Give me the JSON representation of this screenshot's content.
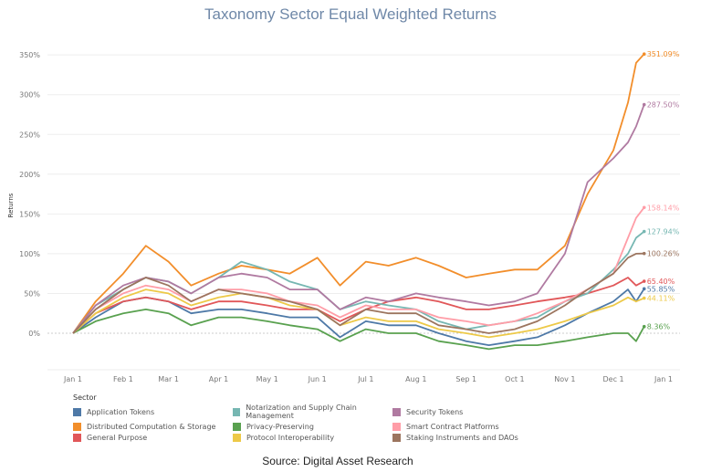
{
  "chart_data": {
    "type": "line",
    "title": "Taxonomy Sector Equal Weighted Returns",
    "ylabel": "Returns",
    "xlabel": "",
    "ylim": [
      -50,
      370
    ],
    "yticks": [
      "0%",
      "50%",
      "100%",
      "150%",
      "200%",
      "250%",
      "300%",
      "350%"
    ],
    "ytick_values": [
      0,
      50,
      100,
      150,
      200,
      250,
      300,
      350
    ],
    "xticks": [
      "Jan 1",
      "Feb 1",
      "Mar 1",
      "Apr 1",
      "May 1",
      "Jun 1",
      "Jul 1",
      "Aug 1",
      "Sep 1",
      "Oct 1",
      "Nov 1",
      "Dec 1",
      "Jan 1"
    ],
    "grid": "horizontal",
    "legend_title": "Sector",
    "legend_placement": "bottom",
    "source": "Source: Digital Asset Research",
    "x": [
      "Jan 1",
      "Jan 15",
      "Feb 1",
      "Feb 15",
      "Mar 1",
      "Mar 15",
      "Apr 1",
      "Apr 15",
      "May 1",
      "May 15",
      "Jun 1",
      "Jun 15",
      "Jul 1",
      "Jul 15",
      "Aug 1",
      "Aug 15",
      "Sep 1",
      "Sep 15",
      "Oct 1",
      "Oct 15",
      "Nov 1",
      "Nov 15",
      "Dec 1",
      "Dec 10",
      "Dec 15",
      "Dec 20"
    ],
    "series": [
      {
        "name": "Application Tokens",
        "color": "#4e79a7",
        "end_label": "55.85%",
        "values": [
          0,
          20,
          40,
          45,
          40,
          25,
          30,
          30,
          25,
          20,
          20,
          -5,
          15,
          10,
          10,
          0,
          -10,
          -15,
          -10,
          -5,
          10,
          25,
          40,
          55,
          40,
          55.85
        ]
      },
      {
        "name": "Distributed Computation & Storage",
        "color": "#f28e2b",
        "end_label": "351.09%",
        "values": [
          0,
          40,
          75,
          110,
          90,
          60,
          75,
          85,
          80,
          75,
          95,
          60,
          90,
          85,
          95,
          85,
          70,
          75,
          80,
          80,
          110,
          175,
          230,
          290,
          340,
          351.09
        ]
      },
      {
        "name": "General Purpose",
        "color": "#e15759",
        "end_label": "65.40%",
        "values": [
          0,
          25,
          40,
          45,
          40,
          30,
          40,
          40,
          35,
          30,
          30,
          15,
          30,
          40,
          45,
          40,
          30,
          30,
          35,
          40,
          45,
          50,
          60,
          70,
          60,
          65.4
        ]
      },
      {
        "name": "Notarization and Supply Chain Management",
        "color": "#76b7b2",
        "end_label": "127.94%",
        "values": [
          0,
          35,
          55,
          70,
          65,
          50,
          70,
          90,
          80,
          65,
          55,
          30,
          40,
          35,
          30,
          15,
          5,
          10,
          15,
          20,
          40,
          50,
          80,
          100,
          120,
          127.94
        ]
      },
      {
        "name": "Privacy-Preserving",
        "color": "#59a14f",
        "end_label": "8.36%",
        "values": [
          0,
          15,
          25,
          30,
          25,
          10,
          20,
          20,
          15,
          10,
          5,
          -10,
          5,
          0,
          0,
          -10,
          -15,
          -20,
          -15,
          -15,
          -10,
          -5,
          0,
          0,
          -10,
          8.36
        ]
      },
      {
        "name": "Protocol Interoperability",
        "color": "#edc948",
        "end_label": "44.11%",
        "values": [
          0,
          25,
          45,
          55,
          50,
          35,
          45,
          50,
          45,
          35,
          30,
          10,
          20,
          15,
          15,
          5,
          0,
          -5,
          0,
          5,
          15,
          25,
          35,
          45,
          40,
          44.11
        ]
      },
      {
        "name": "Security Tokens",
        "color": "#b07aa1",
        "end_label": "287.50%",
        "values": [
          0,
          35,
          60,
          70,
          65,
          50,
          70,
          75,
          70,
          55,
          55,
          30,
          45,
          40,
          50,
          45,
          40,
          35,
          40,
          50,
          100,
          190,
          220,
          240,
          260,
          287.5
        ]
      },
      {
        "name": "Smart Contract Platforms",
        "color": "#ff9da7",
        "end_label": "158.14%",
        "values": [
          0,
          30,
          50,
          60,
          55,
          40,
          55,
          55,
          50,
          40,
          35,
          20,
          35,
          30,
          30,
          20,
          15,
          10,
          15,
          25,
          40,
          55,
          75,
          120,
          145,
          158.14
        ]
      },
      {
        "name": "Staking Instruments and DAOs",
        "color": "#9c755f",
        "end_label": "100.26%",
        "values": [
          0,
          30,
          55,
          70,
          60,
          40,
          55,
          50,
          45,
          40,
          30,
          10,
          30,
          25,
          25,
          10,
          5,
          0,
          5,
          15,
          35,
          55,
          75,
          95,
          100,
          100.26
        ]
      }
    ]
  }
}
